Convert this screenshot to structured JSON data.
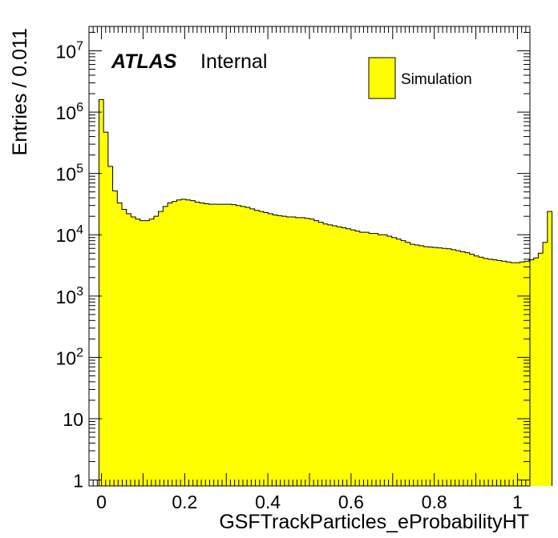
{
  "chart_data": {
    "type": "bar",
    "style": "histogram",
    "xlabel": "GSFTrackParticles_eProbabilityHT",
    "ylabel": "Entries / 0.011",
    "xlim": [
      -0.03,
      1.03
    ],
    "ylim": [
      0.8,
      25000000
    ],
    "yscale": "log",
    "grid": false,
    "legend_position": "top-right",
    "fill_color": "#ffff00",
    "line_color": "#000000",
    "x_ticks": [
      "0",
      "0.2",
      "0.4",
      "0.6",
      "0.8",
      "1"
    ],
    "y_ticks": [
      {
        "value": 1,
        "mant": "1",
        "exp": ""
      },
      {
        "value": 10,
        "mant": "10",
        "exp": ""
      },
      {
        "value": 100,
        "mant": "10",
        "exp": "2"
      },
      {
        "value": 1000,
        "mant": "10",
        "exp": "3"
      },
      {
        "value": 10000,
        "mant": "10",
        "exp": "4"
      },
      {
        "value": 100000,
        "mant": "10",
        "exp": "5"
      },
      {
        "value": 1000000,
        "mant": "10",
        "exp": "6"
      },
      {
        "value": 10000000,
        "mant": "10",
        "exp": "7"
      }
    ],
    "series": [
      {
        "name": "Simulation",
        "bin_edges_start": -0.006,
        "bin_width": 0.011,
        "values": [
          1600000,
          470000,
          130000,
          52000,
          33000,
          26000,
          22000,
          19500,
          18000,
          17000,
          17000,
          18000,
          20000,
          24000,
          29000,
          33000,
          35000,
          37000,
          38000,
          37000,
          36000,
          34000,
          33000,
          32000,
          31500,
          31500,
          31500,
          31500,
          31500,
          31000,
          30000,
          29000,
          28000,
          26500,
          25000,
          24000,
          23000,
          22000,
          21000,
          20500,
          20000,
          19500,
          19500,
          19000,
          19000,
          18500,
          18000,
          17000,
          16000,
          15000,
          14500,
          14000,
          13500,
          13000,
          12500,
          12000,
          11500,
          11000,
          11000,
          10500,
          10500,
          10000,
          10000,
          9500,
          9000,
          8500,
          8000,
          7500,
          7000,
          6800,
          6600,
          6400,
          6300,
          6200,
          6100,
          6000,
          5900,
          5700,
          5500,
          5300,
          5100,
          4800,
          4500,
          4300,
          4100,
          4000,
          3900,
          3800,
          3700,
          3600,
          3500,
          3500,
          3600,
          3700,
          3900,
          4200,
          5000,
          7500,
          24000
        ]
      }
    ],
    "annotations": {
      "atlas": "ATLAS",
      "internal": "Internal"
    }
  }
}
